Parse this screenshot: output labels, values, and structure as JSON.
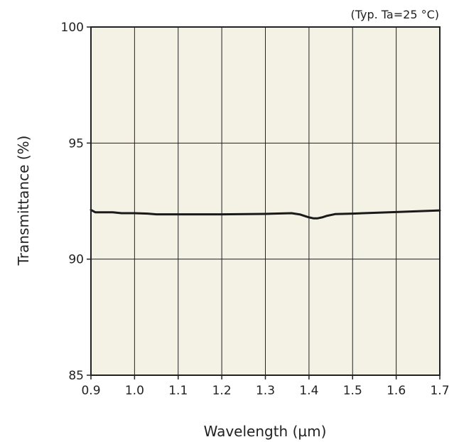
{
  "chart_data": {
    "type": "line",
    "note": "(Typ. Ta=25 °C)",
    "xlabel": "Wavelength (µm)",
    "ylabel": "Transmittance (%)",
    "xlim": [
      0.9,
      1.7
    ],
    "ylim": [
      85,
      100
    ],
    "xticks": [
      "0.9",
      "1.0",
      "1.1",
      "1.2",
      "1.3",
      "1.4",
      "1.5",
      "1.6",
      "1.7"
    ],
    "yticks": [
      "85",
      "90",
      "95",
      "100"
    ],
    "grid": true,
    "series": [
      {
        "color": "#1a1a1a",
        "x": [
          0.9,
          0.91,
          0.95,
          0.97,
          1.0,
          1.03,
          1.05,
          1.1,
          1.2,
          1.3,
          1.36,
          1.38,
          1.4,
          1.41,
          1.42,
          1.43,
          1.44,
          1.46,
          1.5,
          1.6,
          1.7
        ],
        "y": [
          92.12,
          92.02,
          92.02,
          91.98,
          91.98,
          91.96,
          91.93,
          91.93,
          91.93,
          91.95,
          91.98,
          91.92,
          91.8,
          91.76,
          91.76,
          91.8,
          91.86,
          91.94,
          91.96,
          92.03,
          92.1
        ]
      }
    ]
  },
  "colors": {
    "plot_background": "#f4f1e5",
    "grid": "#222222",
    "line": "#1a1a1a"
  }
}
